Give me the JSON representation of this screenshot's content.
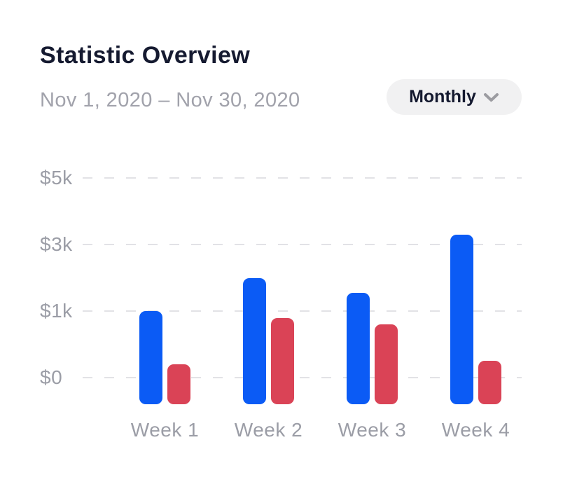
{
  "header": {
    "title": "Statistic Overview",
    "date_range": "Nov 1, 2020 – Nov 30, 2020",
    "period_selector": {
      "label": "Monthly",
      "icon": "chevron-down-icon"
    }
  },
  "colors": {
    "title_text": "#151a30",
    "muted_text": "#9b9da6",
    "subtitle_text": "#a1a2ab",
    "pill_background": "#f1f1f2",
    "chevron": "#9c9ca1",
    "gridline": "#e2e2e6",
    "bar_blue": "#0b5bf5",
    "bar_red": "#da4356"
  },
  "chart_data": {
    "type": "bar",
    "title": "Statistic Overview",
    "subtitle": "Nov 1, 2020 – Nov 30, 2020",
    "categories": [
      "Week 1",
      "Week 2",
      "Week 3",
      "Week 4"
    ],
    "series": [
      {
        "name": "blue",
        "color": "#0b5bf5",
        "values": [
          1000,
          2000,
          1550,
          3300
        ]
      },
      {
        "name": "red",
        "color": "#da4356",
        "values": [
          200,
          900,
          800,
          250
        ]
      }
    ],
    "y_axis": {
      "tick_labels": [
        "$0",
        "$1k",
        "$3k",
        "$5k"
      ],
      "tick_values": [
        0,
        1000,
        3000,
        5000
      ],
      "note": "ticks equally spaced (non-linear value scale)"
    },
    "xlabel": "",
    "ylabel": "",
    "grid": "horizontal-dashed",
    "legend": "none"
  }
}
